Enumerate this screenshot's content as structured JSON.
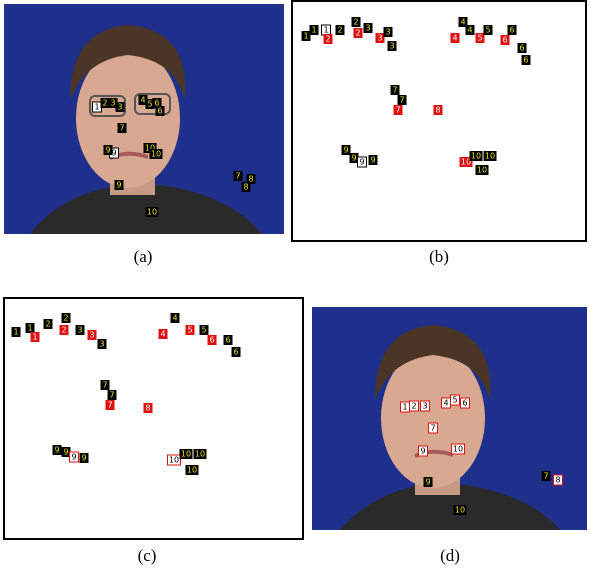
{
  "panels": [
    {
      "caption": "(a)",
      "labels": [
        "1",
        "2",
        "3",
        "3",
        "4",
        "5",
        "6",
        "6",
        "7",
        "9",
        "9",
        "10",
        "10",
        "7",
        "8",
        "8",
        "9",
        "10"
      ]
    },
    {
      "caption": "(b)",
      "labels": [
        "1",
        "1",
        "1",
        "2",
        "2",
        "2",
        "2",
        "3",
        "3",
        "3",
        "3",
        "4",
        "4",
        "4",
        "5",
        "5",
        "6",
        "6",
        "6",
        "6",
        "7",
        "7",
        "7",
        "8",
        "9",
        "9",
        "9",
        "9",
        "10",
        "10",
        "10",
        "10"
      ]
    },
    {
      "caption": "(c)",
      "labels": [
        "1",
        "1",
        "1",
        "2",
        "2",
        "2",
        "3",
        "3",
        "3",
        "4",
        "4",
        "5",
        "5",
        "6",
        "6",
        "6",
        "7",
        "7",
        "7",
        "8",
        "9",
        "9",
        "9",
        "9",
        "10",
        "10",
        "10",
        "10"
      ]
    },
    {
      "caption": "(d)",
      "labels": [
        "1",
        "2",
        "3",
        "4",
        "5",
        "6",
        "7",
        "9",
        "10",
        "7",
        "8",
        "9",
        "10"
      ]
    }
  ]
}
